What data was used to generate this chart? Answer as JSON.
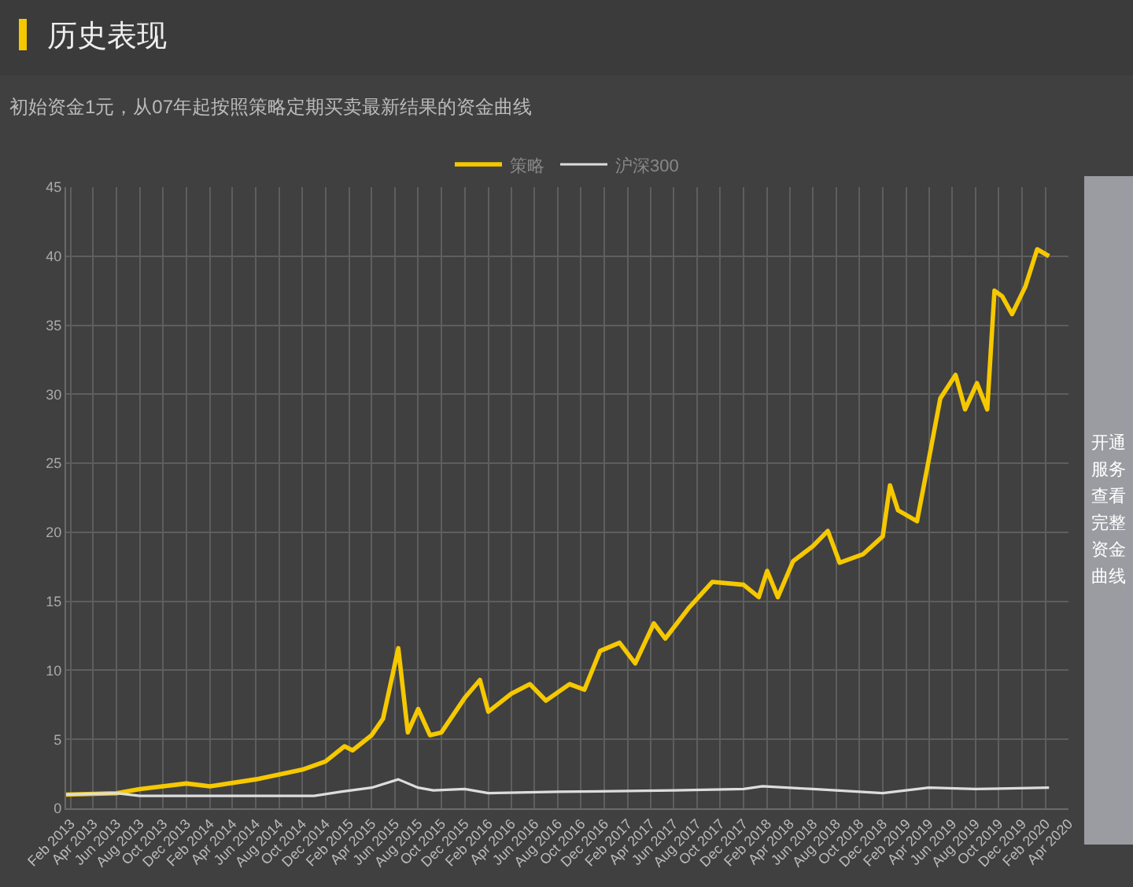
{
  "chart_data": {
    "type": "line",
    "title": "历史表现",
    "subtitle": "初始资金1元，从07年起按照策略定期买卖最新结果的资金曲线",
    "annotations": [
      "开通服务查看完整资金曲线"
    ],
    "legend": "top",
    "grid": true,
    "marker": "none",
    "line_style": "solid",
    "xlim": [
      "2013-01-20",
      "2020-04-01"
    ],
    "ylim": [
      0,
      45
    ],
    "yticks": [
      0,
      5,
      10,
      15,
      20,
      25,
      30,
      35,
      40,
      45
    ],
    "xticks": [
      {
        "value": "2013-02-01",
        "label": "Feb 2013"
      },
      {
        "value": "2013-04-01",
        "label": "Apr 2013"
      },
      {
        "value": "2013-06-01",
        "label": "Jun 2013"
      },
      {
        "value": "2013-08-01",
        "label": "Aug 2013"
      },
      {
        "value": "2013-10-01",
        "label": "Oct 2013"
      },
      {
        "value": "2013-12-01",
        "label": "Dec 2013"
      },
      {
        "value": "2014-02-01",
        "label": "Feb 2014"
      },
      {
        "value": "2014-04-01",
        "label": "Apr 2014"
      },
      {
        "value": "2014-06-01",
        "label": "Jun 2014"
      },
      {
        "value": "2014-08-01",
        "label": "Aug 2014"
      },
      {
        "value": "2014-10-01",
        "label": "Oct 2014"
      },
      {
        "value": "2014-12-01",
        "label": "Dec 2014"
      },
      {
        "value": "2015-02-01",
        "label": "Feb 2015"
      },
      {
        "value": "2015-04-01",
        "label": "Apr 2015"
      },
      {
        "value": "2015-06-01",
        "label": "Jun 2015"
      },
      {
        "value": "2015-08-01",
        "label": "Aug 2015"
      },
      {
        "value": "2015-10-01",
        "label": "Oct 2015"
      },
      {
        "value": "2015-12-01",
        "label": "Dec 2015"
      },
      {
        "value": "2016-02-01",
        "label": "Feb 2016"
      },
      {
        "value": "2016-04-01",
        "label": "Apr 2016"
      },
      {
        "value": "2016-06-01",
        "label": "Jun 2016"
      },
      {
        "value": "2016-08-01",
        "label": "Aug 2016"
      },
      {
        "value": "2016-10-01",
        "label": "Oct 2016"
      },
      {
        "value": "2016-12-01",
        "label": "Dec 2016"
      },
      {
        "value": "2017-02-01",
        "label": "Feb 2017"
      },
      {
        "value": "2017-04-01",
        "label": "Apr 2017"
      },
      {
        "value": "2017-06-01",
        "label": "Jun 2017"
      },
      {
        "value": "2017-08-01",
        "label": "Aug 2017"
      },
      {
        "value": "2017-10-01",
        "label": "Oct 2017"
      },
      {
        "value": "2017-12-01",
        "label": "Dec 2017"
      },
      {
        "value": "2018-02-01",
        "label": "Feb 2018"
      },
      {
        "value": "2018-04-01",
        "label": "Apr 2018"
      },
      {
        "value": "2018-06-01",
        "label": "Jun 2018"
      },
      {
        "value": "2018-08-01",
        "label": "Aug 2018"
      },
      {
        "value": "2018-10-01",
        "label": "Oct 2018"
      },
      {
        "value": "2018-12-01",
        "label": "Dec 2018"
      },
      {
        "value": "2019-02-01",
        "label": "Feb 2019"
      },
      {
        "value": "2019-04-01",
        "label": "Apr 2019"
      },
      {
        "value": "2019-06-01",
        "label": "Jun 2019"
      },
      {
        "value": "2019-08-01",
        "label": "Aug 2019"
      },
      {
        "value": "2019-10-01",
        "label": "Oct 2019"
      },
      {
        "value": "2019-12-01",
        "label": "Dec 2019"
      },
      {
        "value": "2020-02-01",
        "label": "Feb 2020"
      },
      {
        "value": "2020-04-01",
        "label": "Apr 2020"
      }
    ],
    "series": [
      {
        "name": "策略",
        "color": "#f5c800",
        "x": [
          "2013-01-20",
          "2013-06-01",
          "2013-08-01",
          "2013-12-01",
          "2014-02-01",
          "2014-06-01",
          "2014-10-01",
          "2014-12-01",
          "2015-01-20",
          "2015-02-10",
          "2015-04-01",
          "2015-05-01",
          "2015-06-10",
          "2015-07-05",
          "2015-08-01",
          "2015-09-01",
          "2015-10-01",
          "2015-12-01",
          "2016-01-10",
          "2016-02-01",
          "2016-04-01",
          "2016-05-20",
          "2016-07-01",
          "2016-09-01",
          "2016-10-10",
          "2016-11-20",
          "2017-01-10",
          "2017-02-20",
          "2017-04-10",
          "2017-05-10",
          "2017-07-10",
          "2017-09-10",
          "2017-12-01",
          "2018-01-10",
          "2018-02-01",
          "2018-03-01",
          "2018-04-10",
          "2018-06-01",
          "2018-07-10",
          "2018-08-10",
          "2018-10-10",
          "2018-12-01",
          "2018-12-20",
          "2019-01-10",
          "2019-03-01",
          "2019-04-01",
          "2019-05-01",
          "2019-06-10",
          "2019-07-05",
          "2019-08-05",
          "2019-09-01",
          "2019-09-20",
          "2019-10-10",
          "2019-11-05",
          "2019-12-10",
          "2020-01-10",
          "2020-02-10"
        ],
        "values": [
          1.0,
          1.1,
          1.4,
          1.8,
          1.6,
          2.1,
          2.8,
          3.4,
          4.5,
          4.2,
          5.3,
          6.5,
          11.6,
          5.5,
          7.2,
          5.3,
          5.5,
          8.0,
          9.3,
          7.0,
          8.3,
          9.0,
          7.8,
          9.0,
          8.6,
          11.4,
          12.0,
          10.5,
          13.4,
          12.3,
          14.5,
          16.4,
          16.2,
          15.3,
          17.2,
          15.3,
          17.9,
          19.0,
          20.1,
          17.8,
          18.4,
          19.7,
          23.4,
          21.6,
          20.8,
          25.3,
          29.7,
          31.4,
          28.9,
          30.8,
          28.9,
          37.5,
          37.1,
          35.8,
          37.8,
          40.5,
          40.0
        ]
      },
      {
        "name": "沪深300",
        "color": "#dddddd",
        "x": [
          "2013-01-20",
          "2013-06-01",
          "2013-08-01",
          "2014-06-01",
          "2014-11-01",
          "2015-01-10",
          "2015-04-01",
          "2015-06-10",
          "2015-08-01",
          "2015-09-10",
          "2015-12-01",
          "2016-02-01",
          "2016-08-01",
          "2017-06-01",
          "2017-12-01",
          "2018-01-20",
          "2018-06-01",
          "2018-12-01",
          "2019-04-01",
          "2019-08-01",
          "2020-02-10"
        ],
        "values": [
          1.0,
          1.1,
          0.9,
          0.9,
          0.9,
          1.2,
          1.5,
          2.1,
          1.5,
          1.3,
          1.4,
          1.1,
          1.2,
          1.3,
          1.4,
          1.6,
          1.4,
          1.1,
          1.5,
          1.4,
          1.5
        ]
      }
    ]
  }
}
